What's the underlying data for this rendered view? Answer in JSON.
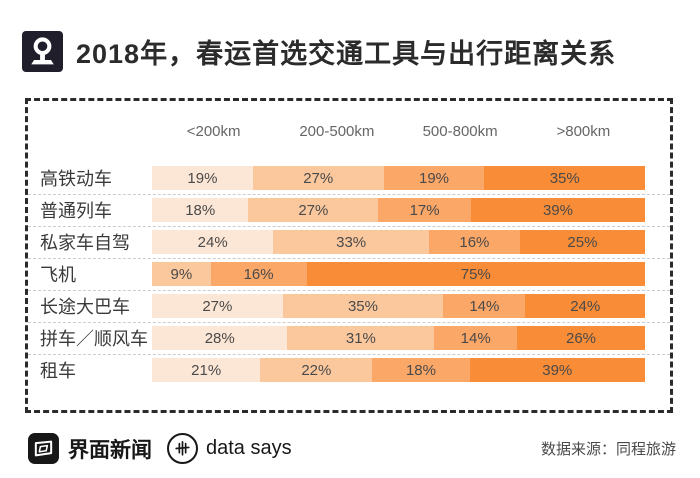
{
  "header": {
    "title": "2018年，春运首选交通工具与出行距离关系"
  },
  "chart_data": {
    "type": "bar",
    "variant": "horizontal-stacked-100",
    "unit": "%",
    "distance_buckets": [
      "<200km",
      "200-500km",
      "500-800km",
      ">800km"
    ],
    "series_colors": [
      "#fce6d5",
      "#fbc89d",
      "#faa768",
      "#f98c37"
    ],
    "rows": [
      {
        "label": "高铁动车",
        "values": [
          19,
          27,
          19,
          35
        ]
      },
      {
        "label": "普通列车",
        "values": [
          18,
          27,
          17,
          39
        ]
      },
      {
        "label": "私家车自驾",
        "values": [
          24,
          33,
          16,
          25
        ]
      },
      {
        "label": "飞机",
        "values": [
          0,
          9,
          16,
          75
        ]
      },
      {
        "label": "长途大巴车",
        "values": [
          27,
          35,
          14,
          24
        ]
      },
      {
        "label": "拼车／顺风车",
        "values": [
          28,
          31,
          14,
          26
        ]
      },
      {
        "label": "租车",
        "values": [
          21,
          22,
          18,
          39
        ]
      }
    ],
    "grid": false,
    "legend": "column headers above bars"
  },
  "footer": {
    "brand1": "界面新闻",
    "brand2": "data says",
    "source": "数据来源：同程旅游"
  }
}
